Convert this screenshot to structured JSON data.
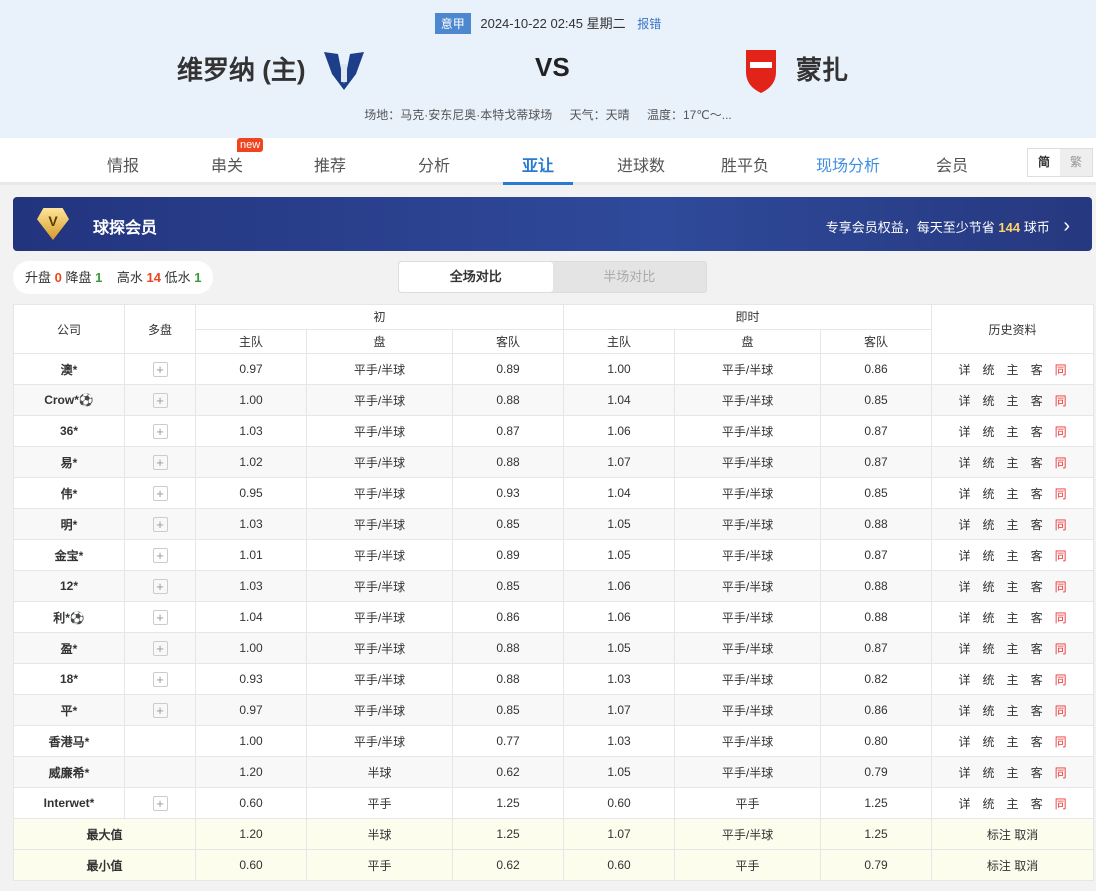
{
  "match": {
    "league": "意甲",
    "datetime": "2024-10-22 02:45 星期二",
    "report": "报错",
    "home": "维罗纳 (主)",
    "away": "蒙扎",
    "vs": "VS",
    "venue": "场地：马克·安东尼奥·本特戈蒂球场",
    "weather": "天气：天晴",
    "temp": "温度：17℃～...",
    "home_logo": "HELLAS VERONA",
    "away_logo": "AC MONZA"
  },
  "nav": {
    "tabs": [
      "情报",
      "串关",
      "推荐",
      "分析",
      "亚让",
      "进球数",
      "胜平负",
      "现场分析",
      "会员"
    ],
    "active": "亚让",
    "new_badge": "new",
    "lang": [
      "简",
      "繁"
    ]
  },
  "vip": {
    "title": "球探会员",
    "text": "专享会员权益，每天至少节省",
    "num": "144",
    "unit": "球币",
    "arrow": "›"
  },
  "stats": {
    "up_label": "升盘",
    "up": "0",
    "down_label": "降盘",
    "down": "1",
    "high_label": "高水",
    "high": "14",
    "low_label": "低水",
    "low": "1"
  },
  "segment": {
    "full": "全场对比",
    "half": "半场对比"
  },
  "table": {
    "headers": {
      "company": "公司",
      "multi": "多盘",
      "initial": "初",
      "live": "即时",
      "history": "历史资料",
      "home": "主队",
      "line": "盘",
      "away": "客队"
    },
    "history_links": [
      "详",
      "统",
      "主",
      "客",
      "同"
    ],
    "rows": [
      {
        "company": "澳*",
        "plus": true,
        "ih": "0.97",
        "il": "平手/半球",
        "ia": "0.89",
        "lh": "1.00",
        "ll": "平手/半球",
        "la": "0.86"
      },
      {
        "company": "Crow*⚽",
        "plus": true,
        "ih": "1.00",
        "il": "平手/半球",
        "ia": "0.88",
        "lh": "1.04",
        "ll": "平手/半球",
        "la": "0.85"
      },
      {
        "company": "36*",
        "plus": true,
        "ih": "1.03",
        "il": "平手/半球",
        "ia": "0.87",
        "lh": "1.06",
        "ll": "平手/半球",
        "la": "0.87"
      },
      {
        "company": "易*",
        "plus": true,
        "ih": "1.02",
        "il": "平手/半球",
        "ia": "0.88",
        "lh": "1.07",
        "ll": "平手/半球",
        "la": "0.87"
      },
      {
        "company": "伟*",
        "plus": true,
        "ih": "0.95",
        "il": "平手/半球",
        "ia": "0.93",
        "lh": "1.04",
        "ll": "平手/半球",
        "la": "0.85"
      },
      {
        "company": "明*",
        "plus": true,
        "ih": "1.03",
        "il": "平手/半球",
        "ia": "0.85",
        "lh": "1.05",
        "ll": "平手/半球",
        "la": "0.88"
      },
      {
        "company": "金宝*",
        "plus": true,
        "ih": "1.01",
        "il": "平手/半球",
        "ia": "0.89",
        "lh": "1.05",
        "ll": "平手/半球",
        "la": "0.87"
      },
      {
        "company": "12*",
        "plus": true,
        "ih": "1.03",
        "il": "平手/半球",
        "ia": "0.85",
        "lh": "1.06",
        "ll": "平手/半球",
        "la": "0.88"
      },
      {
        "company": "利*⚽",
        "plus": true,
        "ih": "1.04",
        "il": "平手/半球",
        "ia": "0.86",
        "lh": "1.06",
        "ll": "平手/半球",
        "la": "0.88"
      },
      {
        "company": "盈*",
        "plus": true,
        "ih": "1.00",
        "il": "平手/半球",
        "ia": "0.88",
        "lh": "1.05",
        "ll": "平手/半球",
        "la": "0.87"
      },
      {
        "company": "18*",
        "plus": true,
        "ih": "0.93",
        "il": "平手/半球",
        "ia": "0.88",
        "lh": "1.03",
        "ll": "平手/半球",
        "la": "0.82"
      },
      {
        "company": "平*",
        "plus": true,
        "ih": "0.97",
        "il": "平手/半球",
        "ia": "0.85",
        "lh": "1.07",
        "ll": "平手/半球",
        "la": "0.86"
      },
      {
        "company": "香港马*",
        "plus": false,
        "ih": "1.00",
        "il": "平手/半球",
        "ia": "0.77",
        "lh": "1.03",
        "ll": "平手/半球",
        "la": "0.80"
      },
      {
        "company": "威廉希*",
        "plus": false,
        "ih": "1.20",
        "il": "半球",
        "ia": "0.62",
        "lh": "1.05",
        "ll": "平手/半球",
        "la": "0.79"
      },
      {
        "company": "Interwet*",
        "plus": true,
        "ih": "0.60",
        "il": "平手",
        "ia": "1.25",
        "lh": "0.60",
        "ll": "平手",
        "la": "1.25"
      }
    ],
    "summary": [
      {
        "label": "最大值",
        "ih": "1.20",
        "il": "半球",
        "ia": "1.25",
        "lh": "1.07",
        "ll": "平手/半球",
        "la": "1.25",
        "action": "标注 取消"
      },
      {
        "label": "最小值",
        "ih": "0.60",
        "il": "平手",
        "ia": "0.62",
        "lh": "0.60",
        "ll": "平手",
        "la": "0.79",
        "action": "标注 取消"
      }
    ]
  }
}
